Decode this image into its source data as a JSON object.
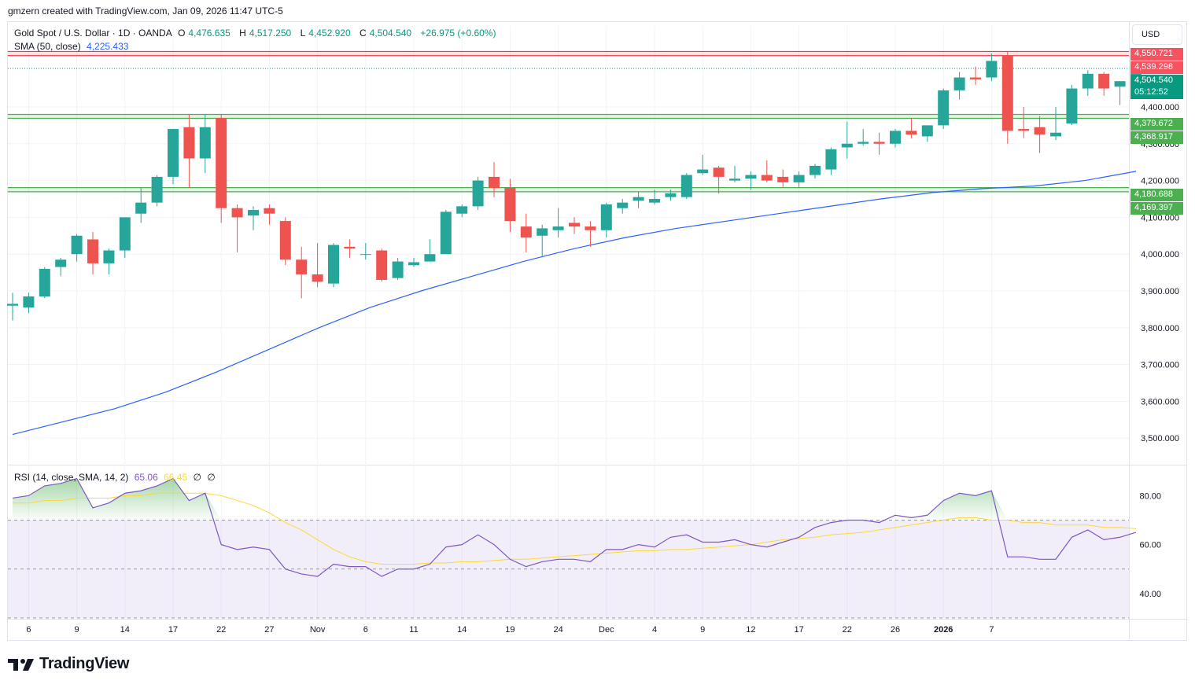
{
  "header": {
    "credit": "gmzern created with TradingView.com, Jan 09, 2026 11:47 UTC-5"
  },
  "legend": {
    "symbol": "Gold Spot / U.S. Dollar · 1D · OANDA",
    "open_label": "O",
    "open": "4,476.635",
    "high_label": "H",
    "high": "4,517.250",
    "low_label": "L",
    "low": "4,452.920",
    "close_label": "C",
    "close": "4,504.540",
    "change": "+26.975 (+0.60%)",
    "sma_label": "SMA (50, close)",
    "sma_value": "4,225.433",
    "rsi_label": "RSI (14, close, SMA, 14, 2)",
    "rsi_value": "65.06",
    "rsi_sma_value": "66.45",
    "rsi_extra1": "∅",
    "rsi_extra2": "∅"
  },
  "currency_button": "USD",
  "price_tags": {
    "res_upper": "4,550.721",
    "res_lower": "4,539.298",
    "last_price": "4,504.540",
    "countdown": "05:12:52",
    "mid_upper": "4,379.672",
    "mid_lower": "4,368.917",
    "sup_upper": "4,180.688",
    "sup_lower": "4,169.397"
  },
  "logo_text": "TradingView",
  "colors": {
    "up": "#26a69a",
    "down": "#ef5350",
    "sma": "#2962ff",
    "rsi": "#7e57c2",
    "rsi_sma": "#fdd835",
    "resistance": "#f23645",
    "support": "#4caf50",
    "grid": "#f0f3fa"
  },
  "chart_data": [
    {
      "type": "candlestick",
      "title": "Gold Spot / U.S. Dollar · 1D · OANDA",
      "ylim": [
        3430,
        4620
      ],
      "y_ticks": [
        3500,
        3600,
        3700,
        3800,
        3900,
        4000,
        4100,
        4200,
        4300,
        4400
      ],
      "y_tick_labels": [
        "3,500.000",
        "3,600.000",
        "3,700.000",
        "3,800.000",
        "3,900.000",
        "4,000.000",
        "4,100.000",
        "4,200.000",
        "4,300.000",
        "4,400.000"
      ],
      "x_tick_labels": [
        {
          "i": 1,
          "label": "6"
        },
        {
          "i": 4,
          "label": "9"
        },
        {
          "i": 7,
          "label": "14"
        },
        {
          "i": 10,
          "label": "17"
        },
        {
          "i": 13,
          "label": "22"
        },
        {
          "i": 16,
          "label": "27"
        },
        {
          "i": 19,
          "label": "Nov"
        },
        {
          "i": 22,
          "label": "6"
        },
        {
          "i": 25,
          "label": "11"
        },
        {
          "i": 28,
          "label": "14"
        },
        {
          "i": 31,
          "label": "19"
        },
        {
          "i": 34,
          "label": "24"
        },
        {
          "i": 37,
          "label": "Dec"
        },
        {
          "i": 40,
          "label": "4"
        },
        {
          "i": 43,
          "label": "9"
        },
        {
          "i": 46,
          "label": "12"
        },
        {
          "i": 49,
          "label": "17"
        },
        {
          "i": 52,
          "label": "22"
        },
        {
          "i": 55,
          "label": "26"
        },
        {
          "i": 58,
          "label": "2026"
        },
        {
          "i": 61,
          "label": "7"
        }
      ],
      "candles": [
        [
          3860,
          3895,
          3820,
          3865
        ],
        [
          3855,
          3895,
          3840,
          3885
        ],
        [
          3885,
          3965,
          3880,
          3960
        ],
        [
          3965,
          3990,
          3940,
          3985
        ],
        [
          4000,
          4055,
          3980,
          4050
        ],
        [
          4040,
          4060,
          3945,
          3975
        ],
        [
          3975,
          4015,
          3945,
          4010
        ],
        [
          4010,
          4100,
          3990,
          4100
        ],
        [
          4110,
          4180,
          4085,
          4140
        ],
        [
          4140,
          4215,
          4130,
          4210
        ],
        [
          4210,
          4340,
          4190,
          4340
        ],
        [
          4345,
          4380,
          4180,
          4260
        ],
        [
          4260,
          4380,
          4220,
          4345
        ],
        [
          4370,
          4380,
          4085,
          4125
        ],
        [
          4125,
          4135,
          4005,
          4100
        ],
        [
          4105,
          4130,
          4065,
          4120
        ],
        [
          4125,
          4135,
          4080,
          4110
        ],
        [
          4090,
          4100,
          3970,
          3985
        ],
        [
          3985,
          4020,
          3880,
          3945
        ],
        [
          3945,
          4030,
          3910,
          3925
        ],
        [
          3920,
          4030,
          3910,
          4025
        ],
        [
          4020,
          4040,
          3990,
          4015
        ],
        [
          4000,
          4030,
          3985,
          4000
        ],
        [
          4010,
          4015,
          3925,
          3930
        ],
        [
          3935,
          3990,
          3930,
          3980
        ],
        [
          3970,
          3990,
          3965,
          3978
        ],
        [
          3980,
          4040,
          3980,
          4000
        ],
        [
          4000,
          4120,
          4000,
          4115
        ],
        [
          4110,
          4135,
          4100,
          4130
        ],
        [
          4130,
          4210,
          4120,
          4200
        ],
        [
          4210,
          4250,
          4155,
          4180
        ],
        [
          4180,
          4205,
          4060,
          4090
        ],
        [
          4075,
          4110,
          4005,
          4045
        ],
        [
          4050,
          4080,
          3995,
          4070
        ],
        [
          4065,
          4125,
          4045,
          4075
        ],
        [
          4085,
          4100,
          4055,
          4075
        ],
        [
          4075,
          4090,
          4020,
          4065
        ],
        [
          4065,
          4140,
          4045,
          4135
        ],
        [
          4125,
          4150,
          4110,
          4140
        ],
        [
          4145,
          4170,
          4125,
          4155
        ],
        [
          4140,
          4175,
          4135,
          4150
        ],
        [
          4155,
          4175,
          4145,
          4165
        ],
        [
          4155,
          4220,
          4150,
          4215
        ],
        [
          4220,
          4270,
          4215,
          4230
        ],
        [
          4235,
          4240,
          4165,
          4210
        ],
        [
          4200,
          4240,
          4195,
          4205
        ],
        [
          4205,
          4225,
          4175,
          4215
        ],
        [
          4215,
          4255,
          4195,
          4200
        ],
        [
          4210,
          4230,
          4180,
          4195
        ],
        [
          4195,
          4225,
          4180,
          4215
        ],
        [
          4215,
          4245,
          4205,
          4240
        ],
        [
          4230,
          4290,
          4215,
          4285
        ],
        [
          4290,
          4360,
          4260,
          4300
        ],
        [
          4300,
          4340,
          4295,
          4305
        ],
        [
          4305,
          4330,
          4270,
          4300
        ],
        [
          4300,
          4340,
          4290,
          4335
        ],
        [
          4335,
          4370,
          4315,
          4325
        ],
        [
          4320,
          4350,
          4305,
          4350
        ],
        [
          4350,
          4450,
          4340,
          4445
        ],
        [
          4445,
          4495,
          4420,
          4480
        ],
        [
          4480,
          4510,
          4460,
          4475
        ],
        [
          4480,
          4545,
          4470,
          4525
        ],
        [
          4540,
          4550,
          4300,
          4335
        ],
        [
          4340,
          4400,
          4315,
          4335
        ],
        [
          4345,
          4375,
          4275,
          4325
        ],
        [
          4320,
          4400,
          4310,
          4330
        ],
        [
          4355,
          4460,
          4350,
          4450
        ],
        [
          4450,
          4500,
          4430,
          4490
        ],
        [
          4490,
          4495,
          4430,
          4450
        ],
        [
          4455,
          4470,
          4405,
          4470
        ],
        [
          4475,
          4517,
          4453,
          4505
        ]
      ],
      "sma_50": [
        [
          0,
          3510
        ],
        [
          4,
          3545
        ],
        [
          8,
          3580
        ],
        [
          12,
          3625
        ],
        [
          16,
          3680
        ],
        [
          20,
          3740
        ],
        [
          24,
          3800
        ],
        [
          28,
          3855
        ],
        [
          32,
          3900
        ],
        [
          36,
          3940
        ],
        [
          40,
          3980
        ],
        [
          44,
          4015
        ],
        [
          48,
          4045
        ],
        [
          52,
          4070
        ],
        [
          56,
          4090
        ],
        [
          60,
          4110
        ],
        [
          64,
          4130
        ],
        [
          68,
          4150
        ],
        [
          72,
          4167
        ],
        [
          76,
          4178
        ],
        [
          80,
          4185
        ],
        [
          84,
          4200
        ],
        [
          88,
          4225
        ]
      ],
      "support_resistance": [
        {
          "name": "resistance",
          "values": [
            4550.721,
            4539.298
          ]
        },
        {
          "name": "mid",
          "values": [
            4379.672,
            4368.917
          ]
        },
        {
          "name": "support",
          "values": [
            4180.688,
            4169.397
          ]
        }
      ],
      "last_price": 4504.54
    },
    {
      "type": "line",
      "title": "RSI (14, close, SMA, 14, 2)",
      "ylim": [
        30,
        92
      ],
      "y_ticks": [
        40,
        60,
        80
      ],
      "y_tick_labels": [
        "40.00",
        "60.00",
        "80.00"
      ],
      "bands": [
        30,
        50,
        70
      ],
      "series": [
        {
          "name": "RSI",
          "values": [
            79,
            80,
            84,
            85,
            87,
            75,
            77,
            81,
            82,
            84,
            87,
            78,
            81,
            60,
            58,
            59,
            58,
            50,
            48,
            47,
            52,
            51,
            51,
            47,
            50,
            50,
            52,
            59,
            60,
            64,
            60,
            54,
            51,
            53,
            54,
            54,
            53,
            58,
            58,
            60,
            59,
            63,
            64,
            61,
            61,
            62,
            60,
            59,
            61,
            63,
            67,
            69,
            70,
            70,
            69,
            72,
            71,
            72,
            78,
            81,
            80,
            82,
            55,
            55,
            54,
            54,
            63,
            66,
            62,
            63,
            65
          ]
        },
        {
          "name": "RSI SMA",
          "values": [
            77,
            77,
            78,
            78,
            79,
            79,
            79,
            80,
            80,
            81,
            81,
            81,
            81,
            80,
            78,
            76,
            73,
            69,
            66,
            62,
            58,
            55,
            53,
            52,
            52,
            52,
            52.5,
            52.5,
            53,
            53,
            53.5,
            54,
            54,
            54.5,
            55,
            55.5,
            56,
            56.5,
            57,
            57.5,
            57.5,
            58,
            58,
            58.5,
            59,
            59.5,
            60,
            61,
            62,
            62.5,
            63,
            64,
            64.5,
            65,
            66,
            67,
            68,
            69,
            70,
            71,
            71,
            70,
            70,
            69,
            69,
            68,
            68,
            68,
            67,
            67,
            66.5
          ]
        }
      ]
    }
  ]
}
